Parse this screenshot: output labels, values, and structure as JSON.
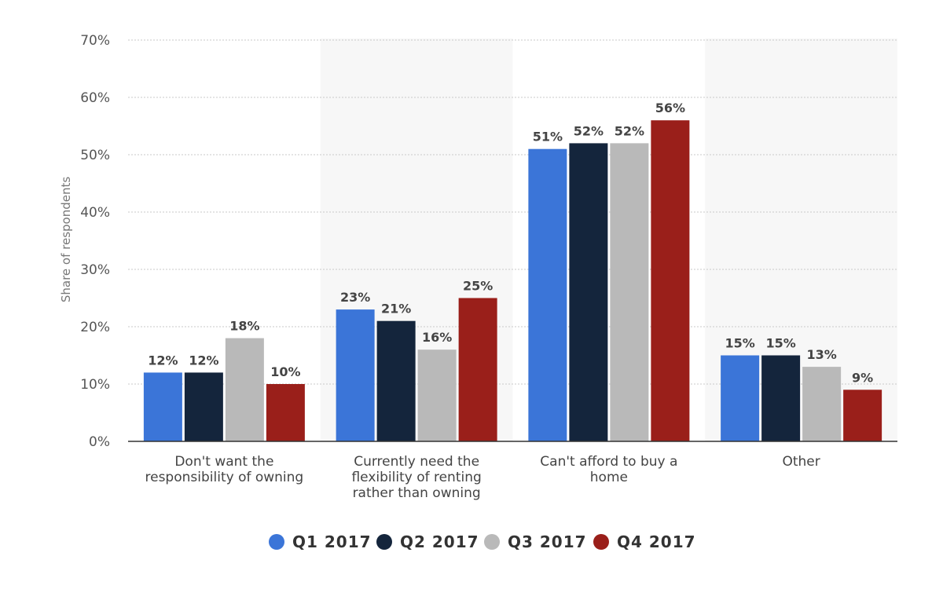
{
  "chart_data": {
    "type": "bar",
    "title": "",
    "xlabel": "",
    "ylabel": "Share of respondents",
    "ylim": [
      0,
      70
    ],
    "yticks": [
      0,
      10,
      20,
      30,
      40,
      50,
      60,
      70
    ],
    "ytick_labels": [
      "0%",
      "10%",
      "20%",
      "30%",
      "40%",
      "50%",
      "60%",
      "70%"
    ],
    "grid": true,
    "legend_position": "bottom",
    "categories": [
      [
        "Don't want the",
        "responsibility of owning"
      ],
      [
        "Currently need the",
        "flexibility of renting",
        "rather than owning"
      ],
      [
        "Can't afford to buy a",
        "home"
      ],
      [
        "Other"
      ]
    ],
    "series": [
      {
        "name": "Q1 2017",
        "color": "#3b75d8",
        "values": [
          12,
          23,
          51,
          15
        ],
        "labels": [
          "12%",
          "23%",
          "51%",
          "15%"
        ]
      },
      {
        "name": "Q2 2017",
        "color": "#14253c",
        "values": [
          12,
          21,
          52,
          15
        ],
        "labels": [
          "12%",
          "21%",
          "52%",
          "15%"
        ]
      },
      {
        "name": "Q3 2017",
        "color": "#b9b9b9",
        "values": [
          18,
          16,
          52,
          13
        ],
        "labels": [
          "18%",
          "16%",
          "52%",
          "13%"
        ]
      },
      {
        "name": "Q4 2017",
        "color": "#9a1f1a",
        "values": [
          10,
          25,
          56,
          9
        ],
        "labels": [
          "10%",
          "25%",
          "56%",
          "9%"
        ]
      }
    ],
    "colors": {
      "band": "#f7f7f7",
      "grid": "#c8c8c8",
      "baseline": "#333333"
    }
  }
}
